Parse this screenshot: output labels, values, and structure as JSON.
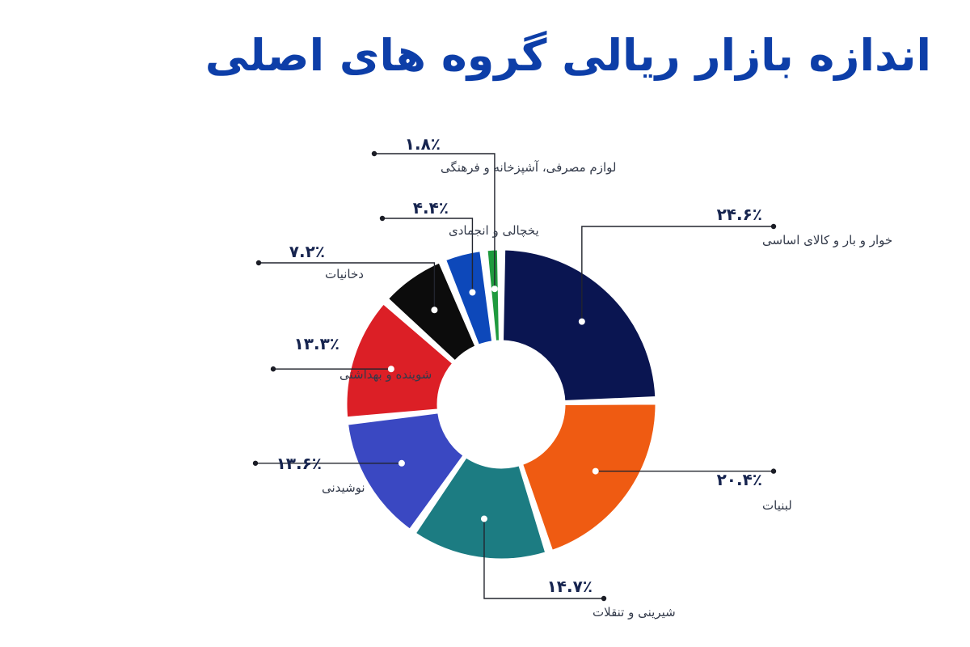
{
  "chart_data": {
    "type": "pie",
    "title": "اندازه بازار ریالی گروه های اصلی",
    "categories": [
      "خوار و بار و کالای اساسی",
      "لبنیات",
      "شیرینی و تنقلات",
      "نوشیدنی",
      "شوینده و بهداشتی",
      "دخانیات",
      "یخچالی و انجمادی",
      "لوازم مصرفی، آشپزخانه و فرهنگی"
    ],
    "values": [
      24.6,
      20.4,
      14.7,
      13.6,
      13.3,
      7.2,
      4.4,
      1.8
    ],
    "value_labels": [
      "۲۴.۶٪",
      "۲۰.۴٪",
      "۱۴.۷٪",
      "۱۳.۶٪",
      "۱۳.۳٪",
      "۷.۲٪",
      "۴.۴٪",
      "۱.۸٪"
    ],
    "colors": [
      "#0a1551",
      "#ef5b12",
      "#1c7c82",
      "#3a48c2",
      "#dc1f26",
      "#0c0c0c",
      "#0d48ba",
      "#1f9a3e"
    ],
    "donut": true,
    "legend": "none"
  }
}
